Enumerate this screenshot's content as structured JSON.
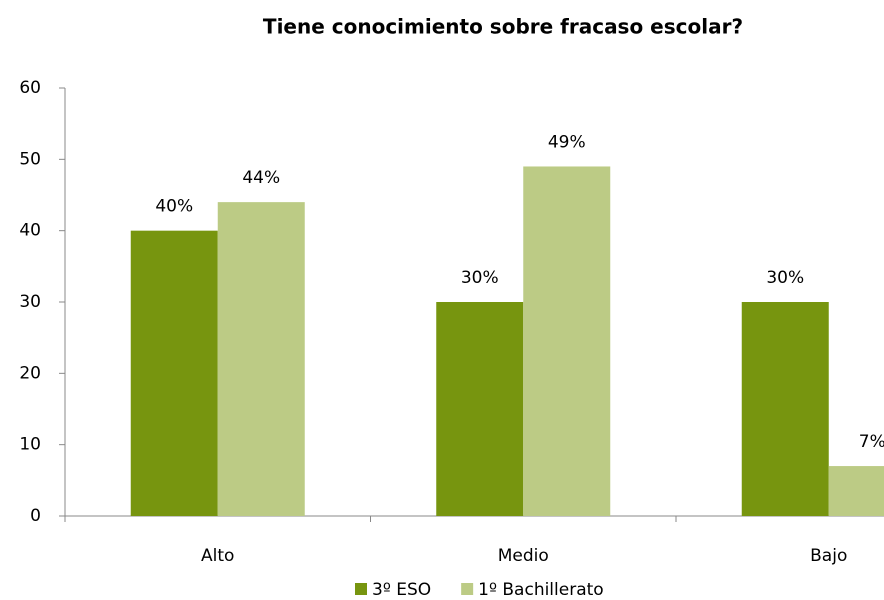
{
  "chart_data": {
    "type": "bar",
    "title": "Tiene conocimiento sobre fracaso escolar?",
    "categories": [
      "Alto",
      "Medio",
      "Bajo"
    ],
    "series": [
      {
        "name": "3º ESO",
        "color": "#77950f",
        "values": [
          40,
          30,
          30
        ],
        "value_labels": [
          "40%",
          "30%",
          "30%"
        ]
      },
      {
        "name": "1º Bachillerato",
        "color": "#bccb85",
        "values": [
          44,
          49,
          7
        ],
        "value_labels": [
          "44%",
          "49%",
          "7%"
        ]
      }
    ],
    "ylim": [
      0,
      60
    ],
    "yticks": [
      0,
      10,
      20,
      30,
      40,
      50,
      60
    ],
    "legend": "bottom"
  }
}
